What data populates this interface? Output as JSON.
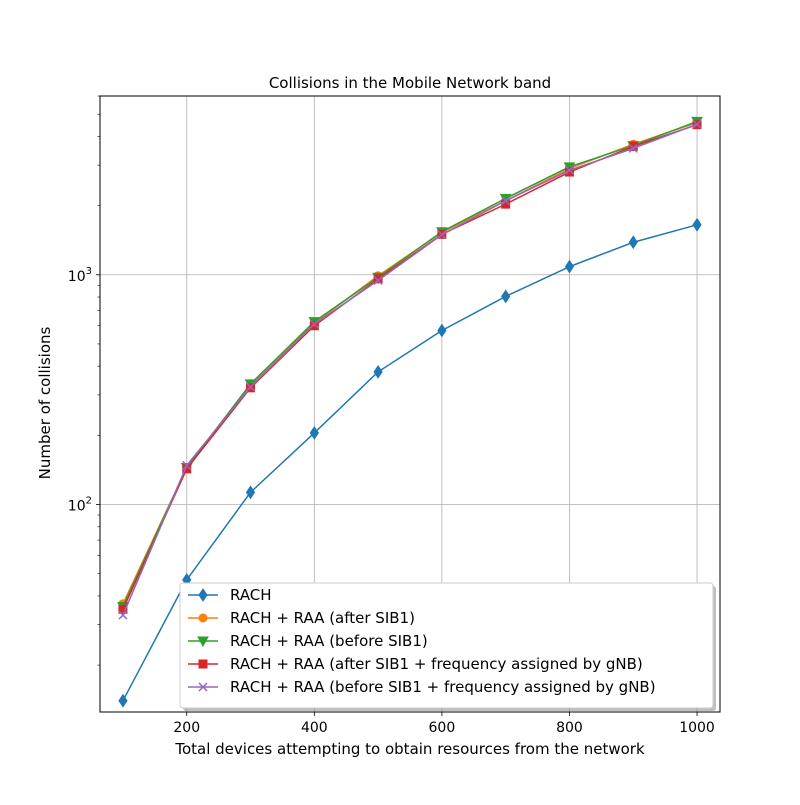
{
  "chart_data": {
    "type": "line",
    "title": "Collisions in the Mobile Network band",
    "xlabel": "Total devices attempting to obtain resources from the network",
    "ylabel": "Number of collisions",
    "xlim": [
      64,
      1036
    ],
    "ylim": [
      12.5,
      6000
    ],
    "y_scale": "log",
    "grid": true,
    "legend_position": "lower-right",
    "x": [
      100,
      200,
      300,
      400,
      500,
      600,
      700,
      800,
      900,
      1000
    ],
    "x_ticks": [
      200,
      400,
      600,
      800,
      1000
    ],
    "x_tick_labels": [
      "200",
      "400",
      "600",
      "800",
      "1000"
    ],
    "y_major_ticks": [
      {
        "value": 100,
        "base": "10",
        "exp": "2"
      },
      {
        "value": 1000,
        "base": "10",
        "exp": "3"
      }
    ],
    "series": [
      {
        "name": "RACH",
        "color": "#1f77b4",
        "marker": "diamond",
        "values": [
          14,
          47,
          113,
          205,
          378,
          572,
          805,
          1085,
          1385,
          1650
        ]
      },
      {
        "name": "RACH + RAA (after SIB1)",
        "color": "#ff7f0e",
        "marker": "circle",
        "values": [
          37,
          145,
          330,
          615,
          990,
          1530,
          2100,
          2900,
          3700,
          4600
        ]
      },
      {
        "name": "RACH + RAA (before SIB1)",
        "color": "#2ca02c",
        "marker": "triangle-down",
        "values": [
          36,
          145,
          335,
          625,
          975,
          1540,
          2150,
          2950,
          3650,
          4650
        ]
      },
      {
        "name": "RACH + RAA (after SIB1 + frequency assigned by gNB)",
        "color": "#d62728",
        "marker": "square",
        "values": [
          35,
          143,
          322,
          600,
          960,
          1500,
          2030,
          2800,
          3620,
          4500
        ]
      },
      {
        "name": "RACH + RAA (before SIB1 + frequency assigned by gNB)",
        "color": "#9467bd",
        "marker": "x",
        "values": [
          33,
          148,
          325,
          610,
          945,
          1495,
          2100,
          2850,
          3550,
          4520
        ]
      }
    ]
  }
}
